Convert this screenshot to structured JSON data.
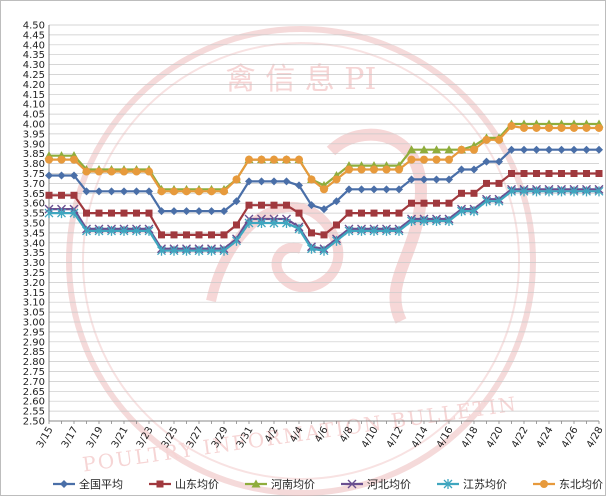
{
  "chart_data": {
    "type": "line",
    "x": [
      "3/15",
      "3/16",
      "3/17",
      "3/18",
      "3/19",
      "3/20",
      "3/21",
      "3/22",
      "3/23",
      "3/24",
      "3/25",
      "3/26",
      "3/27",
      "3/28",
      "3/29",
      "3/30",
      "3/31",
      "4/1",
      "4/2",
      "4/3",
      "4/4",
      "4/5",
      "4/6",
      "4/7",
      "4/8",
      "4/9",
      "4/10",
      "4/11",
      "4/12",
      "4/13",
      "4/14",
      "4/15",
      "4/16",
      "4/17",
      "4/18",
      "4/19",
      "4/20",
      "4/21",
      "4/22",
      "4/23",
      "4/24",
      "4/25",
      "4/26",
      "4/27",
      "4/28"
    ],
    "x_tick_labels": [
      "3/15",
      "3/17",
      "3/19",
      "3/21",
      "3/23",
      "3/25",
      "3/27",
      "3/29",
      "3/31",
      "4/2",
      "4/4",
      "4/6",
      "4/8",
      "4/10",
      "4/12",
      "4/14",
      "4/16",
      "4/18",
      "4/20",
      "4/22",
      "4/24",
      "4/26",
      "4/28"
    ],
    "y_tick_labels": [
      "2.50",
      "2.55",
      "2.60",
      "2.65",
      "2.70",
      "2.75",
      "2.80",
      "2.85",
      "2.90",
      "2.95",
      "3.00",
      "3.05",
      "3.10",
      "3.15",
      "3.20",
      "3.25",
      "3.30",
      "3.35",
      "3.40",
      "3.45",
      "3.50",
      "3.55",
      "3.60",
      "3.65",
      "3.70",
      "3.75",
      "3.80",
      "3.85",
      "3.90",
      "3.95",
      "4.00",
      "4.05",
      "4.10",
      "4.15",
      "4.20",
      "4.25",
      "4.30",
      "4.35",
      "4.40",
      "4.45",
      "4.50"
    ],
    "ylim": [
      2.5,
      4.5
    ],
    "grid": true,
    "legend_position": "bottom",
    "series": [
      {
        "name": "全国平均",
        "color": "#4a6fa8",
        "marker": "diamond",
        "values": [
          3.74,
          3.74,
          3.74,
          3.66,
          3.66,
          3.66,
          3.66,
          3.66,
          3.66,
          3.56,
          3.56,
          3.56,
          3.56,
          3.56,
          3.56,
          3.61,
          3.71,
          3.71,
          3.71,
          3.71,
          3.69,
          3.59,
          3.57,
          3.61,
          3.67,
          3.67,
          3.67,
          3.67,
          3.67,
          3.72,
          3.72,
          3.72,
          3.72,
          3.77,
          3.77,
          3.81,
          3.81,
          3.87,
          3.87,
          3.87,
          3.87,
          3.87,
          3.87,
          3.87,
          3.87
        ]
      },
      {
        "name": "山东均价",
        "color": "#a0393e",
        "marker": "square",
        "values": [
          3.64,
          3.64,
          3.64,
          3.55,
          3.55,
          3.55,
          3.55,
          3.55,
          3.55,
          3.44,
          3.44,
          3.44,
          3.44,
          3.44,
          3.44,
          3.49,
          3.59,
          3.59,
          3.59,
          3.59,
          3.55,
          3.45,
          3.44,
          3.49,
          3.55,
          3.55,
          3.55,
          3.55,
          3.55,
          3.6,
          3.6,
          3.6,
          3.6,
          3.65,
          3.65,
          3.7,
          3.7,
          3.75,
          3.75,
          3.75,
          3.75,
          3.75,
          3.75,
          3.75,
          3.75
        ]
      },
      {
        "name": "河南均价",
        "color": "#8fad3c",
        "marker": "triangle",
        "values": [
          3.84,
          3.84,
          3.84,
          3.77,
          3.77,
          3.77,
          3.77,
          3.77,
          3.77,
          3.67,
          3.67,
          3.67,
          3.67,
          3.67,
          3.67,
          3.72,
          3.82,
          3.82,
          3.82,
          3.82,
          3.82,
          3.72,
          3.69,
          3.74,
          3.79,
          3.79,
          3.79,
          3.79,
          3.79,
          3.87,
          3.87,
          3.87,
          3.87,
          3.87,
          3.89,
          3.93,
          3.93,
          4.0,
          4.0,
          4.0,
          4.0,
          4.0,
          4.0,
          4.0,
          4.0
        ]
      },
      {
        "name": "河北均价",
        "color": "#6a4f90",
        "marker": "x",
        "values": [
          3.57,
          3.57,
          3.57,
          3.47,
          3.47,
          3.47,
          3.47,
          3.47,
          3.47,
          3.37,
          3.37,
          3.37,
          3.37,
          3.37,
          3.37,
          3.42,
          3.52,
          3.52,
          3.52,
          3.52,
          3.48,
          3.38,
          3.37,
          3.42,
          3.47,
          3.47,
          3.47,
          3.47,
          3.47,
          3.52,
          3.52,
          3.52,
          3.52,
          3.57,
          3.57,
          3.62,
          3.62,
          3.67,
          3.67,
          3.67,
          3.67,
          3.67,
          3.67,
          3.67,
          3.67
        ]
      },
      {
        "name": "江苏均价",
        "color": "#3fa6bf",
        "marker": "asterisk",
        "values": [
          3.55,
          3.55,
          3.55,
          3.46,
          3.46,
          3.46,
          3.46,
          3.46,
          3.46,
          3.36,
          3.36,
          3.36,
          3.36,
          3.36,
          3.36,
          3.41,
          3.5,
          3.5,
          3.5,
          3.5,
          3.47,
          3.37,
          3.36,
          3.41,
          3.46,
          3.46,
          3.46,
          3.46,
          3.46,
          3.51,
          3.51,
          3.51,
          3.51,
          3.56,
          3.56,
          3.61,
          3.61,
          3.66,
          3.66,
          3.66,
          3.66,
          3.66,
          3.66,
          3.66,
          3.66
        ]
      },
      {
        "name": "东北均价",
        "color": "#e79a3c",
        "marker": "circle",
        "values": [
          3.82,
          3.82,
          3.82,
          3.76,
          3.76,
          3.76,
          3.76,
          3.76,
          3.76,
          3.66,
          3.66,
          3.66,
          3.66,
          3.66,
          3.66,
          3.72,
          3.82,
          3.82,
          3.82,
          3.82,
          3.82,
          3.72,
          3.67,
          3.72,
          3.77,
          3.77,
          3.77,
          3.77,
          3.77,
          3.82,
          3.82,
          3.82,
          3.82,
          3.87,
          3.87,
          3.92,
          3.92,
          3.99,
          3.98,
          3.98,
          3.98,
          3.98,
          3.98,
          3.98,
          3.98
        ]
      }
    ]
  },
  "watermark": {
    "top_text": "禽 信 息 PI",
    "bottom_text": "POULTRY INFORMATION BULLETIN",
    "color": "#e8a3a3"
  }
}
